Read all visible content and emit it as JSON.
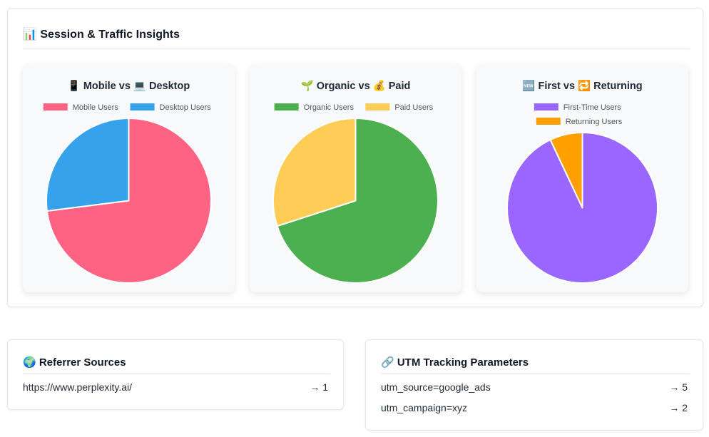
{
  "insights": {
    "title": "📊 Session & Traffic Insights"
  },
  "chart_data": [
    {
      "type": "pie",
      "title": "📱 Mobile vs 💻 Desktop",
      "labels": [
        "Mobile Users",
        "Desktop Users"
      ],
      "values": [
        73,
        27
      ],
      "colors": [
        "#ff6384",
        "#36a2eb"
      ],
      "legend_position": "top"
    },
    {
      "type": "pie",
      "title": "🌱 Organic vs 💰 Paid",
      "labels": [
        "Organic Users",
        "Paid Users"
      ],
      "values": [
        70,
        30
      ],
      "colors": [
        "#4caf50",
        "#ffcd56"
      ],
      "legend_position": "top"
    },
    {
      "type": "pie",
      "title": "🆕 First vs 🔁 Returning",
      "labels": [
        "First-Time Users",
        "Returning Users"
      ],
      "values": [
        93,
        7
      ],
      "colors": [
        "#9966ff",
        "#ff9f00"
      ],
      "legend_position": "top"
    }
  ],
  "referrers": {
    "title": "🌍 Referrer Sources",
    "items": [
      {
        "label": "https://www.perplexity.ai/",
        "count": "→ 1"
      }
    ]
  },
  "utm": {
    "title": "🔗 UTM Tracking Parameters",
    "items": [
      {
        "label": "utm_source=google_ads",
        "count": "→ 5"
      },
      {
        "label": "utm_campaign=xyz",
        "count": "→ 2"
      }
    ]
  }
}
